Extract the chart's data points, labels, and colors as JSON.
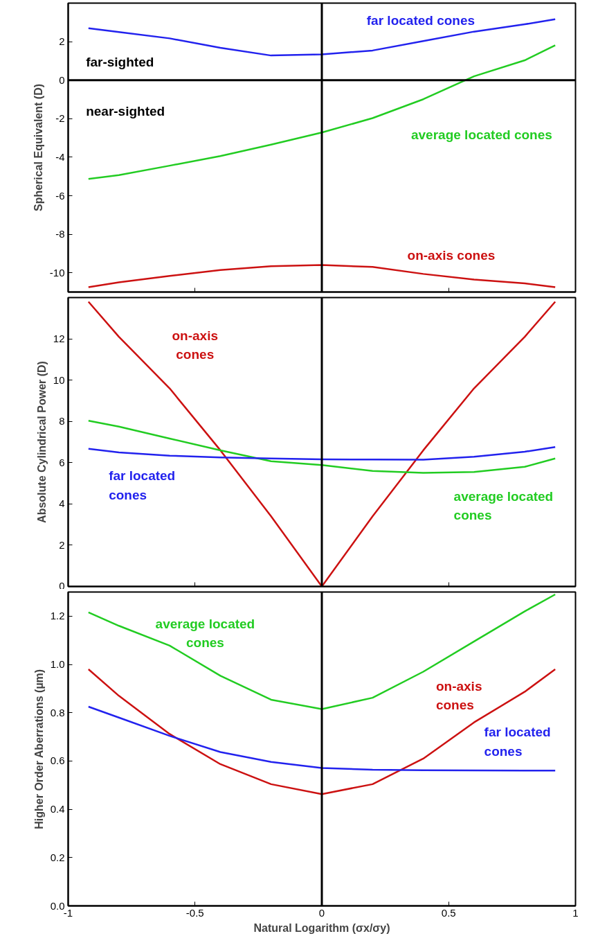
{
  "chart_data": [
    {
      "type": "line",
      "ylabel": "Spherical Equivalent (D)",
      "xlim": [
        -1,
        1
      ],
      "xticks": [
        -1,
        -0.5,
        0,
        0.5,
        1
      ],
      "ylim": [
        -11,
        4
      ],
      "yticks": [
        -10,
        -8,
        -6,
        -4,
        -2,
        0,
        2
      ],
      "tick_labels": "y",
      "grid": false,
      "x": [
        -0.92,
        -0.8,
        -0.6,
        -0.4,
        -0.2,
        0,
        0.2,
        0.4,
        0.6,
        0.8,
        0.92
      ],
      "series": [
        {
          "name": "far located cones",
          "color": "#2222ee",
          "values": [
            2.7,
            2.5,
            2.17,
            1.68,
            1.28,
            1.34,
            1.54,
            2.03,
            2.52,
            2.9,
            3.16
          ]
        },
        {
          "name": "average located cones",
          "color": "#22cc22",
          "values": [
            -5.13,
            -4.93,
            -4.44,
            -3.94,
            -3.35,
            -2.72,
            -1.97,
            -0.99,
            0.2,
            1.03,
            1.81
          ]
        },
        {
          "name": "on-axis cones",
          "color": "#cc1111",
          "values": [
            -10.75,
            -10.5,
            -10.16,
            -9.86,
            -9.66,
            -9.6,
            -9.7,
            -10.06,
            -10.35,
            -10.55,
            -10.75
          ]
        }
      ],
      "ref_lines": [
        {
          "axis": "y",
          "value": 0,
          "color": "#000000"
        },
        {
          "axis": "x",
          "value": 0,
          "color": "#000000"
        }
      ],
      "annotations": [
        "far-sighted",
        "near-sighted"
      ]
    },
    {
      "type": "line",
      "ylabel": "Absolute Cylindrical Power (D)",
      "xlim": [
        -1,
        1
      ],
      "xticks": [
        -1,
        -0.5,
        0,
        0.5,
        1
      ],
      "ylim": [
        0,
        14
      ],
      "yticks": [
        0,
        2,
        4,
        6,
        8,
        10,
        12
      ],
      "tick_labels": "y",
      "grid": false,
      "x": [
        -0.92,
        -0.8,
        -0.6,
        -0.4,
        -0.2,
        0,
        0.2,
        0.4,
        0.6,
        0.8,
        0.92
      ],
      "series": [
        {
          "name": "on-axis\ncones",
          "color": "#cc1111",
          "values": [
            13.8,
            12.1,
            9.6,
            6.6,
            3.4,
            0,
            3.4,
            6.6,
            9.6,
            12.1,
            13.8
          ]
        },
        {
          "name": "average located\ncones",
          "color": "#22cc22",
          "values": [
            8.03,
            7.75,
            7.17,
            6.6,
            6.07,
            5.88,
            5.6,
            5.51,
            5.55,
            5.8,
            6.2
          ]
        },
        {
          "name": "far located\ncones",
          "color": "#2222ee",
          "values": [
            6.67,
            6.5,
            6.34,
            6.25,
            6.2,
            6.16,
            6.15,
            6.14,
            6.29,
            6.53,
            6.76
          ]
        }
      ],
      "ref_lines": [
        {
          "axis": "x",
          "value": 0,
          "color": "#000000"
        }
      ]
    },
    {
      "type": "line",
      "ylabel": "Higher Order Aberrations (µm)",
      "xlabel": "Natural Logarithm (σx/σy)",
      "xlim": [
        -1,
        1
      ],
      "xticks": [
        -1,
        -0.5,
        0,
        0.5,
        1
      ],
      "ylim": [
        0,
        1.3
      ],
      "yticks": [
        {
          "value": 0,
          "label": "0.0"
        },
        0.2,
        0.4,
        0.6,
        0.8,
        {
          "value": 1,
          "label": "1.0"
        },
        1.2
      ],
      "grid": false,
      "x": [
        -0.92,
        -0.8,
        -0.6,
        -0.4,
        -0.2,
        0,
        0.2,
        0.4,
        0.6,
        0.8,
        0.92
      ],
      "series": [
        {
          "name": "average located\ncones",
          "color": "#22cc22",
          "values": [
            1.216,
            1.16,
            1.078,
            0.953,
            0.854,
            0.815,
            0.862,
            0.97,
            1.095,
            1.22,
            1.29
          ]
        },
        {
          "name": "on-axis\ncones",
          "color": "#cc1111",
          "values": [
            0.98,
            0.87,
            0.712,
            0.587,
            0.504,
            0.463,
            0.504,
            0.61,
            0.76,
            0.887,
            0.98
          ]
        },
        {
          "name": "far located\ncones",
          "color": "#2222ee",
          "values": [
            0.825,
            0.78,
            0.704,
            0.637,
            0.596,
            0.571,
            0.564,
            0.562,
            0.561,
            0.56,
            0.56
          ]
        }
      ],
      "ref_lines": [
        {
          "axis": "x",
          "value": 0,
          "color": "#000000"
        }
      ]
    }
  ]
}
